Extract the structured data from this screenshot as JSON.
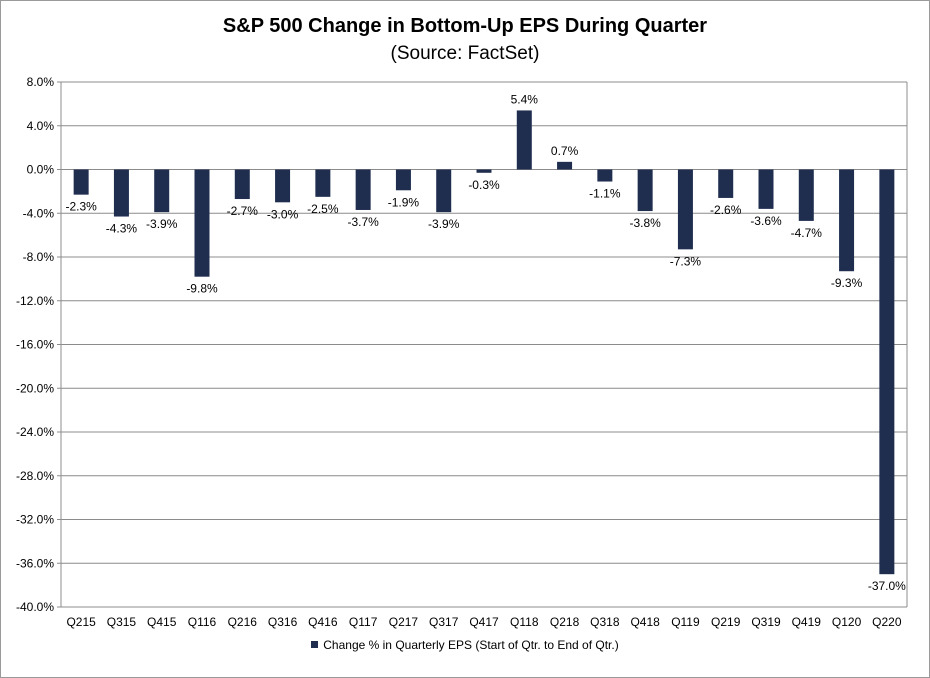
{
  "chart_data": {
    "type": "bar",
    "title": "S&P 500 Change in Bottom-Up EPS During Quarter",
    "subtitle": "(Source: FactSet)",
    "xlabel": "",
    "ylabel": "",
    "ylim": [
      -40,
      8
    ],
    "yticks": [
      8,
      4,
      0,
      -4,
      -8,
      -12,
      -16,
      -20,
      -24,
      -28,
      -32,
      -36,
      -40
    ],
    "ytick_labels": [
      "8.0%",
      "4.0%",
      "0.0%",
      "-4.0%",
      "-8.0%",
      "-12.0%",
      "-16.0%",
      "-20.0%",
      "-24.0%",
      "-28.0%",
      "-32.0%",
      "-36.0%",
      "-40.0%"
    ],
    "grid": true,
    "legend_position": "bottom",
    "categories": [
      "Q215",
      "Q315",
      "Q415",
      "Q116",
      "Q216",
      "Q316",
      "Q416",
      "Q117",
      "Q217",
      "Q317",
      "Q417",
      "Q118",
      "Q218",
      "Q318",
      "Q418",
      "Q119",
      "Q219",
      "Q319",
      "Q419",
      "Q120",
      "Q220"
    ],
    "series": [
      {
        "name": "Change % in Quarterly EPS (Start of Qtr. to End of Qtr.)",
        "color": "#1f2d4f",
        "values": [
          -2.3,
          -4.3,
          -3.9,
          -9.8,
          -2.7,
          -3.0,
          -2.5,
          -3.7,
          -1.9,
          -3.9,
          -0.3,
          5.4,
          0.7,
          -1.1,
          -3.8,
          -7.3,
          -2.6,
          -3.6,
          -4.7,
          -9.3,
          -37.0
        ],
        "labels": [
          "-2.3%",
          "-4.3%",
          "-3.9%",
          "-9.8%",
          "-2.7%",
          "-3.0%",
          "-2.5%",
          "-3.7%",
          "-1.9%",
          "-3.9%",
          "-0.3%",
          "5.4%",
          "0.7%",
          "-1.1%",
          "-3.8%",
          "-7.3%",
          "-2.6%",
          "-3.6%",
          "-4.7%",
          "-9.3%",
          "-37.0%"
        ]
      }
    ]
  }
}
